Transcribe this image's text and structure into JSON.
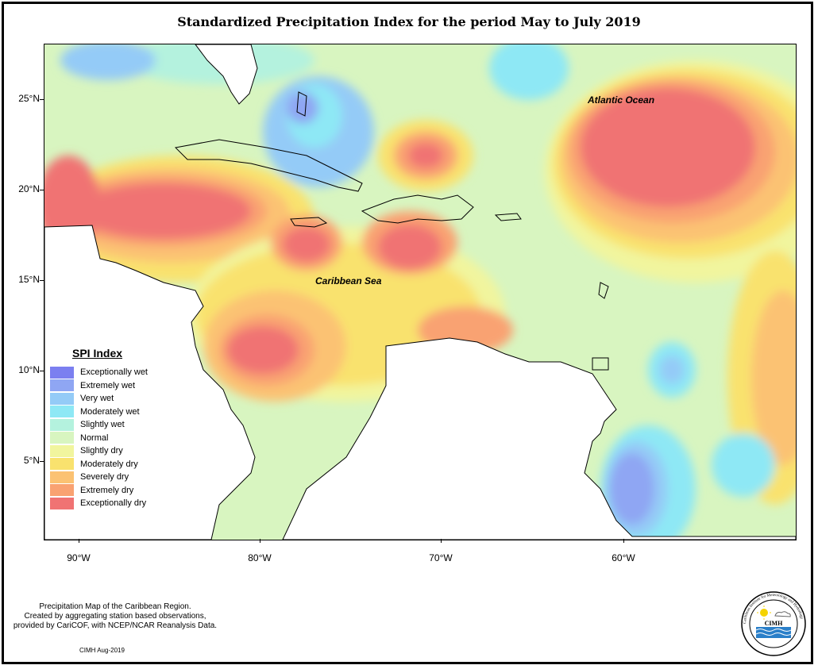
{
  "title": "Standardized Precipitation Index for the period May to July 2019",
  "map": {
    "lat_labels": [
      "25°N",
      "20°N",
      "15°N",
      "10°N",
      "5°N"
    ],
    "lon_labels": [
      "90°W",
      "80°W",
      "70°W",
      "60°W"
    ],
    "ocean_labels": {
      "atlantic": "Atlantic Ocean",
      "caribbean": "Caribbean Sea"
    }
  },
  "legend": {
    "title": "SPI Index",
    "items": [
      {
        "label": "Exceptionally wet",
        "color": "#7b7ff0"
      },
      {
        "label": "Extremely wet",
        "color": "#8fa6f3"
      },
      {
        "label": "Very wet",
        "color": "#94cbf7"
      },
      {
        "label": "Moderately wet",
        "color": "#8ee8f5"
      },
      {
        "label": "Slightly wet",
        "color": "#b4f2de"
      },
      {
        "label": "Normal",
        "color": "#d8f5c0"
      },
      {
        "label": "Slightly dry",
        "color": "#f1f59e"
      },
      {
        "label": "Moderately dry",
        "color": "#f9e26e"
      },
      {
        "label": "Severely dry",
        "color": "#fbc273"
      },
      {
        "label": "Extremely dry",
        "color": "#f9a272"
      },
      {
        "label": "Exceptionally dry",
        "color": "#f07373"
      }
    ]
  },
  "footnote": {
    "line1": "Precipitation Map of the Caribbean Region.",
    "line2": "Created by aggregating station based observations,",
    "line3": "provided by CariCOF, with NCEP/NCAR Reanalysis Data."
  },
  "credit": "CIMH Aug-2019",
  "logo": {
    "text": "CIMH",
    "ring_text": "Caribbean Institute for Meteorology and Hydrology"
  }
}
